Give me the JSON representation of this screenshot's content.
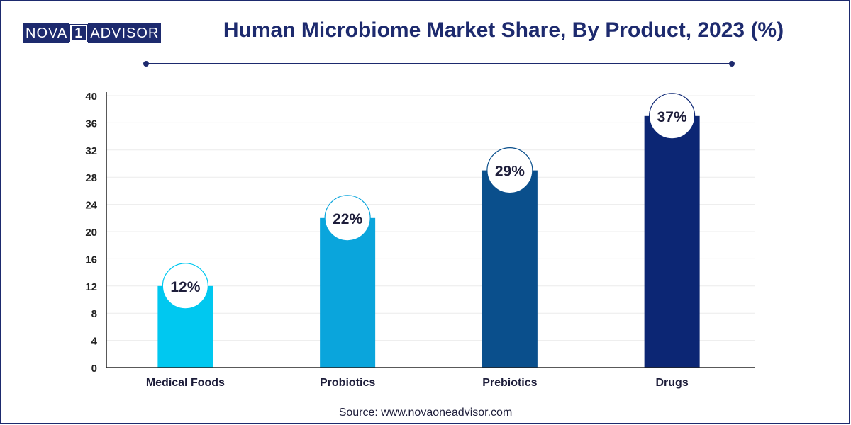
{
  "brand": {
    "part1": "NOVA",
    "part2": "1",
    "part3": "ADVISOR"
  },
  "title": "Human Microbiome Market Share, By Product, 2023 (%)",
  "source": "Source: www.novaoneadvisor.com",
  "chart_data": {
    "type": "bar",
    "title": "Human Microbiome Market Share, By Product, 2023 (%)",
    "categories": [
      "Medical Foods",
      "Probiotics",
      "Prebiotics",
      "Drugs"
    ],
    "values": [
      12,
      22,
      29,
      37
    ],
    "data_labels": [
      "12%",
      "22%",
      "29%",
      "37%"
    ],
    "bar_colors": [
      "#00c8f0",
      "#0aa5dc",
      "#0a4f8c",
      "#0c2674"
    ],
    "ylim": [
      0,
      40
    ],
    "yticks": [
      0,
      4,
      8,
      12,
      16,
      20,
      24,
      28,
      32,
      36,
      40
    ],
    "xlabel": "",
    "ylabel": "",
    "grid": true,
    "legend": "none"
  }
}
